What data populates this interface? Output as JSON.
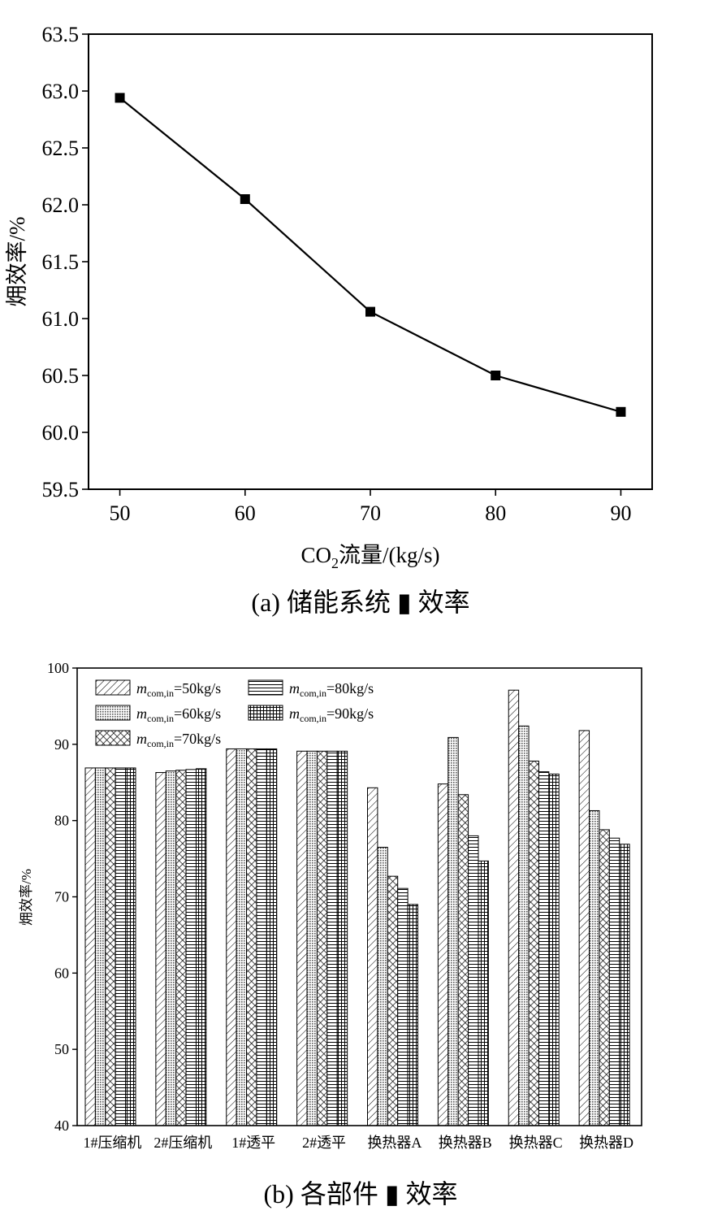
{
  "chart_data": [
    {
      "type": "line",
      "caption_prefix": "(a) 储能系统",
      "caption_glyph": "▮",
      "caption_suffix": "效率",
      "xlabel_main": "CO",
      "xlabel_sub": "2",
      "xlabel_rest": "流量/(kg/s)",
      "ylabel": "㶲效率/%",
      "x": [
        50,
        60,
        70,
        80,
        90
      ],
      "y": [
        62.94,
        62.05,
        61.06,
        60.5,
        60.18
      ],
      "xlim": [
        47.5,
        92.5
      ],
      "ylim": [
        59.5,
        63.5
      ],
      "xticks": [
        "50",
        "60",
        "70",
        "80",
        "90"
      ],
      "yticks": [
        "59.5",
        "60.0",
        "60.5",
        "61.0",
        "61.5",
        "62.0",
        "62.5",
        "63.0",
        "63.5"
      ],
      "marker": "square",
      "line_color": "#000000"
    },
    {
      "type": "bar",
      "caption_prefix": "(b) 各部件",
      "caption_glyph": "▮",
      "caption_suffix": "效率",
      "ylabel": "㶲效率/%",
      "ylim": [
        40,
        100
      ],
      "yticks": [
        "40",
        "50",
        "60",
        "70",
        "80",
        "90",
        "100"
      ],
      "categories": [
        "1#压缩机",
        "2#压缩机",
        "1#透平",
        "2#透平",
        "换热器A",
        "换热器B",
        "换热器C",
        "换热器D"
      ],
      "series": [
        {
          "legend_main": "m",
          "legend_sub": "com,in",
          "legend_rest": "=50kg/s",
          "pattern": "diagonal",
          "values": [
            86.9,
            86.3,
            89.4,
            89.1,
            84.3,
            84.8,
            97.1,
            91.8
          ]
        },
        {
          "legend_main": "m",
          "legend_sub": "com,in",
          "legend_rest": "=60kg/s",
          "pattern": "dots",
          "values": [
            86.9,
            86.5,
            89.4,
            89.1,
            76.5,
            90.9,
            92.4,
            81.3
          ]
        },
        {
          "legend_main": "m",
          "legend_sub": "com,in",
          "legend_rest": "=70kg/s",
          "pattern": "crosshatch",
          "values": [
            86.9,
            86.6,
            89.4,
            89.1,
            72.7,
            83.4,
            87.8,
            78.8
          ]
        },
        {
          "legend_main": "m",
          "legend_sub": "com,in",
          "legend_rest": "=80kg/s",
          "pattern": "horizontal",
          "values": [
            86.9,
            86.7,
            89.4,
            89.1,
            71.1,
            78.0,
            86.4,
            77.7
          ]
        },
        {
          "legend_main": "m",
          "legend_sub": "com,in",
          "legend_rest": "=90kg/s",
          "pattern": "grid",
          "values": [
            86.9,
            86.8,
            89.4,
            89.1,
            69.0,
            74.7,
            86.1,
            76.9
          ]
        }
      ]
    }
  ]
}
